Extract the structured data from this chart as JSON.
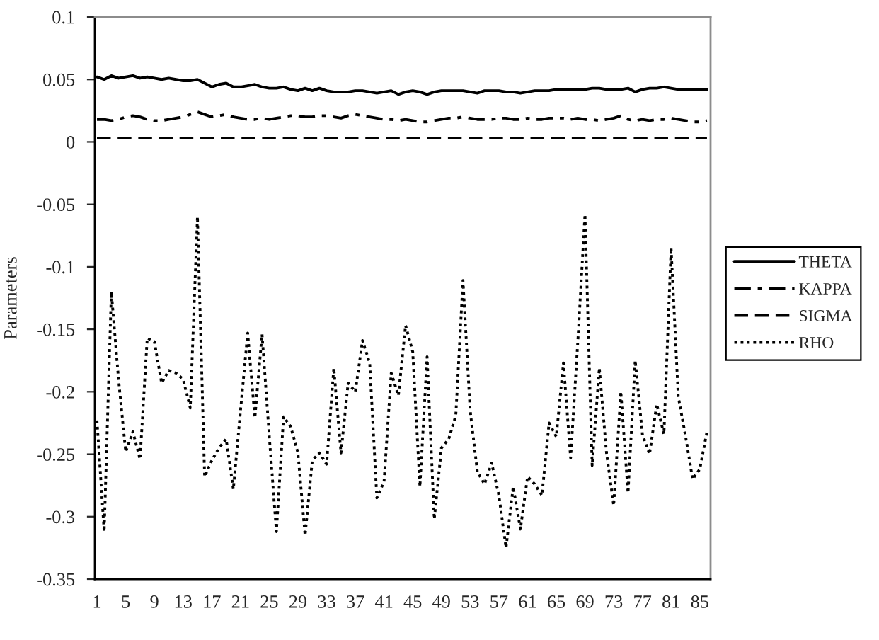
{
  "chart_data": {
    "type": "line",
    "ylabel": "Parameters",
    "categories": [
      "1",
      null,
      null,
      null,
      "5",
      null,
      null,
      null,
      "9",
      null,
      null,
      null,
      "13",
      null,
      null,
      null,
      "17",
      null,
      null,
      null,
      "21",
      null,
      null,
      null,
      "25",
      null,
      null,
      null,
      "29",
      null,
      null,
      null,
      "33",
      null,
      null,
      null,
      "37",
      null,
      null,
      null,
      "41",
      null,
      null,
      null,
      "45",
      null,
      null,
      null,
      "49",
      null,
      null,
      null,
      "53",
      null,
      null,
      null,
      "57",
      null,
      null,
      null,
      "61",
      null,
      null,
      null,
      "65",
      null,
      null,
      null,
      "69",
      null,
      null,
      null,
      "73",
      null,
      null,
      null,
      "77",
      null,
      null,
      null,
      "81",
      null,
      null,
      null,
      "85",
      null
    ],
    "series": [
      {
        "name": "THETA",
        "color": "#000000",
        "line_style": "solid",
        "values": [
          0.052,
          0.05,
          0.053,
          0.051,
          0.052,
          0.053,
          0.051,
          0.052,
          0.051,
          0.05,
          0.051,
          0.05,
          0.049,
          0.049,
          0.05,
          0.047,
          0.044,
          0.046,
          0.047,
          0.044,
          0.044,
          0.045,
          0.046,
          0.044,
          0.043,
          0.043,
          0.044,
          0.042,
          0.041,
          0.043,
          0.041,
          0.043,
          0.041,
          0.04,
          0.04,
          0.04,
          0.041,
          0.041,
          0.04,
          0.039,
          0.04,
          0.041,
          0.038,
          0.04,
          0.041,
          0.04,
          0.038,
          0.04,
          0.041,
          0.041,
          0.041,
          0.041,
          0.04,
          0.039,
          0.041,
          0.041,
          0.041,
          0.04,
          0.04,
          0.039,
          0.04,
          0.041,
          0.041,
          0.041,
          0.042,
          0.042,
          0.042,
          0.042,
          0.042,
          0.043,
          0.043,
          0.042,
          0.042,
          0.042,
          0.043,
          0.04,
          0.042,
          0.043,
          0.043,
          0.044,
          0.043,
          0.042,
          0.042,
          0.042,
          0.042,
          0.042
        ]
      },
      {
        "name": "KAPPA",
        "color": "#000000",
        "line_style": "dashdot",
        "values": [
          0.018,
          0.018,
          0.017,
          0.018,
          0.02,
          0.021,
          0.02,
          0.018,
          0.017,
          0.017,
          0.018,
          0.019,
          0.02,
          0.022,
          0.024,
          0.022,
          0.02,
          0.021,
          0.022,
          0.02,
          0.019,
          0.018,
          0.018,
          0.019,
          0.018,
          0.019,
          0.02,
          0.021,
          0.021,
          0.02,
          0.02,
          0.021,
          0.021,
          0.02,
          0.019,
          0.021,
          0.022,
          0.021,
          0.02,
          0.019,
          0.018,
          0.018,
          0.017,
          0.018,
          0.017,
          0.016,
          0.016,
          0.017,
          0.018,
          0.019,
          0.019,
          0.02,
          0.019,
          0.018,
          0.018,
          0.018,
          0.019,
          0.019,
          0.018,
          0.018,
          0.019,
          0.018,
          0.018,
          0.019,
          0.019,
          0.019,
          0.018,
          0.019,
          0.018,
          0.018,
          0.017,
          0.018,
          0.019,
          0.021,
          0.018,
          0.017,
          0.018,
          0.017,
          0.018,
          0.018,
          0.019,
          0.018,
          0.017,
          0.016,
          0.016,
          0.017
        ]
      },
      {
        "name": "SIGMA",
        "color": "#000000",
        "line_style": "dashed",
        "values": [
          0.003,
          0.003,
          0.003,
          0.003,
          0.003,
          0.003,
          0.003,
          0.003,
          0.003,
          0.003,
          0.003,
          0.003,
          0.003,
          0.003,
          0.003,
          0.003,
          0.003,
          0.003,
          0.003,
          0.003,
          0.003,
          0.003,
          0.003,
          0.003,
          0.003,
          0.003,
          0.003,
          0.003,
          0.003,
          0.003,
          0.003,
          0.003,
          0.003,
          0.003,
          0.003,
          0.003,
          0.003,
          0.003,
          0.003,
          0.003,
          0.003,
          0.003,
          0.003,
          0.003,
          0.003,
          0.003,
          0.003,
          0.003,
          0.003,
          0.003,
          0.003,
          0.003,
          0.003,
          0.003,
          0.003,
          0.003,
          0.003,
          0.003,
          0.003,
          0.003,
          0.003,
          0.003,
          0.003,
          0.003,
          0.003,
          0.003,
          0.003,
          0.003,
          0.003,
          0.003,
          0.003,
          0.003,
          0.003,
          0.003,
          0.003,
          0.003,
          0.003,
          0.003,
          0.003,
          0.003,
          0.003,
          0.003,
          0.003,
          0.003,
          0.003,
          0.003
        ]
      },
      {
        "name": "RHO",
        "color": "#000000",
        "line_style": "dotted",
        "values": [
          -0.223,
          -0.312,
          -0.12,
          -0.19,
          -0.248,
          -0.232,
          -0.254,
          -0.157,
          -0.16,
          -0.193,
          -0.183,
          -0.185,
          -0.19,
          -0.213,
          -0.06,
          -0.268,
          -0.255,
          -0.245,
          -0.238,
          -0.278,
          -0.215,
          -0.153,
          -0.221,
          -0.154,
          -0.235,
          -0.312,
          -0.22,
          -0.228,
          -0.249,
          -0.315,
          -0.255,
          -0.249,
          -0.258,
          -0.181,
          -0.249,
          -0.193,
          -0.2,
          -0.159,
          -0.177,
          -0.285,
          -0.272,
          -0.185,
          -0.203,
          -0.147,
          -0.168,
          -0.276,
          -0.172,
          -0.302,
          -0.245,
          -0.238,
          -0.219,
          -0.111,
          -0.215,
          -0.264,
          -0.274,
          -0.257,
          -0.283,
          -0.325,
          -0.276,
          -0.31,
          -0.268,
          -0.274,
          -0.283,
          -0.225,
          -0.236,
          -0.177,
          -0.253,
          -0.16,
          -0.058,
          -0.259,
          -0.181,
          -0.249,
          -0.291,
          -0.2,
          -0.281,
          -0.175,
          -0.234,
          -0.25,
          -0.21,
          -0.234,
          -0.085,
          -0.204,
          -0.235,
          -0.27,
          -0.262,
          -0.232
        ]
      }
    ],
    "ylim": [
      -0.35,
      0.1
    ],
    "yticks": [
      -0.35,
      -0.3,
      -0.25,
      -0.2,
      -0.15,
      -0.1,
      -0.05,
      0,
      0.05,
      0.1
    ],
    "legend": "right"
  }
}
